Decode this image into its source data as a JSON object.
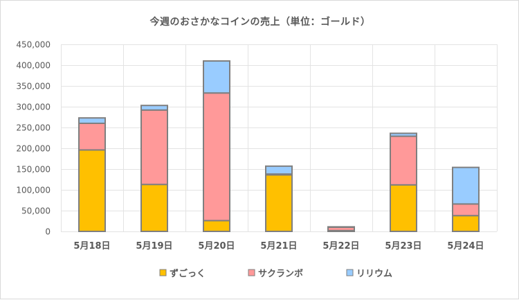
{
  "chart_data": {
    "type": "bar",
    "stacked": true,
    "title": "今週のおさかなコインの売上（単位：ゴールド）",
    "xlabel": "",
    "ylabel": "",
    "categories": [
      "5月18日",
      "5月19日",
      "5月20日",
      "5月21日",
      "5月22日",
      "5月23日",
      "5月24日"
    ],
    "series": [
      {
        "name": "ずごっく",
        "color": "#ffc000",
        "values": [
          196000,
          113000,
          26000,
          136000,
          2000,
          112000,
          38000
        ]
      },
      {
        "name": "サクランボ",
        "color": "#ff9999",
        "values": [
          64000,
          179000,
          307000,
          2000,
          8000,
          117000,
          28000
        ]
      },
      {
        "name": "リリウム",
        "color": "#99ccff",
        "values": [
          13000,
          11000,
          77000,
          19000,
          1000,
          7000,
          88000
        ]
      }
    ],
    "ylim": [
      0,
      450000
    ],
    "yticks": [
      0,
      50000,
      100000,
      150000,
      200000,
      250000,
      300000,
      350000,
      400000,
      450000
    ],
    "ytick_labels": [
      "0",
      "50,000",
      "100,000",
      "150,000",
      "200,000",
      "250,000",
      "300,000",
      "350,000",
      "400,000",
      "450,000"
    ],
    "grid": {
      "horizontal": true,
      "vertical": true
    },
    "legend_position": "bottom",
    "bar_border_color": "#7f7f7f"
  }
}
